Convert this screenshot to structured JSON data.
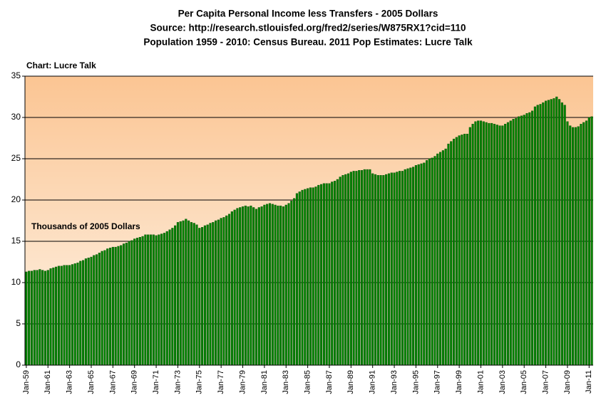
{
  "chart_data": {
    "type": "bar",
    "title_lines": [
      "Per Capita Personal Income less Transfers - 2005 Dollars",
      "Source: http://research.stlouisfed.org/fred2/series/W875RX1?cid=110",
      "Population 1959 - 2010: Census Bureau.  2011 Pop Estimates: Lucre Talk"
    ],
    "credit": "Chart: Lucre Talk",
    "annotation": "Thousands of 2005 Dollars",
    "color": "#008000",
    "grid": true,
    "ylim": [
      0,
      35
    ],
    "yticks": [
      0,
      5,
      10,
      15,
      20,
      25,
      30,
      35
    ],
    "categories": [
      "Jan-59",
      null,
      null,
      null,
      null,
      null,
      null,
      null,
      "Jan-61",
      null,
      null,
      null,
      null,
      null,
      null,
      null,
      "Jan-63",
      null,
      null,
      null,
      null,
      null,
      null,
      null,
      "Jan-65",
      null,
      null,
      null,
      null,
      null,
      null,
      null,
      "Jan-67",
      null,
      null,
      null,
      null,
      null,
      null,
      null,
      "Jan-69",
      null,
      null,
      null,
      null,
      null,
      null,
      null,
      "Jan-71",
      null,
      null,
      null,
      null,
      null,
      null,
      null,
      "Jan-73",
      null,
      null,
      null,
      null,
      null,
      null,
      null,
      "Jan-75",
      null,
      null,
      null,
      null,
      null,
      null,
      null,
      "Jan-77",
      null,
      null,
      null,
      null,
      null,
      null,
      null,
      "Jan-79",
      null,
      null,
      null,
      null,
      null,
      null,
      null,
      "Jan-81",
      null,
      null,
      null,
      null,
      null,
      null,
      null,
      "Jan-83",
      null,
      null,
      null,
      null,
      null,
      null,
      null,
      "Jan-85",
      null,
      null,
      null,
      null,
      null,
      null,
      null,
      "Jan-87",
      null,
      null,
      null,
      null,
      null,
      null,
      null,
      "Jan-89",
      null,
      null,
      null,
      null,
      null,
      null,
      null,
      "Jan-91",
      null,
      null,
      null,
      null,
      null,
      null,
      null,
      "Jan-93",
      null,
      null,
      null,
      null,
      null,
      null,
      null,
      "Jan-95",
      null,
      null,
      null,
      null,
      null,
      null,
      null,
      "Jan-97",
      null,
      null,
      null,
      null,
      null,
      null,
      null,
      "Jan-99",
      null,
      null,
      null,
      null,
      null,
      null,
      null,
      "Jan-01",
      null,
      null,
      null,
      null,
      null,
      null,
      null,
      "Jan-03",
      null,
      null,
      null,
      null,
      null,
      null,
      null,
      "Jan-05",
      null,
      null,
      null,
      null,
      null,
      null,
      null,
      "Jan-07",
      null,
      null,
      null,
      null,
      null,
      null,
      null,
      "Jan-09",
      null,
      null,
      null,
      null,
      null,
      null,
      null,
      "Jan-11",
      null
    ],
    "values": [
      11.3,
      11.4,
      11.4,
      11.5,
      11.5,
      11.6,
      11.5,
      11.4,
      11.5,
      11.7,
      11.8,
      11.9,
      12.0,
      12.0,
      12.1,
      12.1,
      12.1,
      12.2,
      12.3,
      12.4,
      12.6,
      12.7,
      12.9,
      13.0,
      13.1,
      13.3,
      13.4,
      13.6,
      13.8,
      13.9,
      14.1,
      14.2,
      14.3,
      14.3,
      14.4,
      14.5,
      14.7,
      14.8,
      15.0,
      15.1,
      15.3,
      15.4,
      15.5,
      15.6,
      15.8,
      15.8,
      15.8,
      15.8,
      15.7,
      15.8,
      15.9,
      16.0,
      16.2,
      16.4,
      16.6,
      16.9,
      17.3,
      17.4,
      17.5,
      17.7,
      17.5,
      17.3,
      17.2,
      17.0,
      16.6,
      16.7,
      16.9,
      17.0,
      17.2,
      17.3,
      17.5,
      17.6,
      17.8,
      17.9,
      18.1,
      18.3,
      18.6,
      18.8,
      19.0,
      19.1,
      19.2,
      19.3,
      19.2,
      19.3,
      19.1,
      18.9,
      19.1,
      19.2,
      19.4,
      19.5,
      19.6,
      19.5,
      19.4,
      19.3,
      19.3,
      19.2,
      19.4,
      19.6,
      19.9,
      20.2,
      20.8,
      21.0,
      21.2,
      21.3,
      21.4,
      21.5,
      21.5,
      21.6,
      21.8,
      21.9,
      22.0,
      22.0,
      22.0,
      22.2,
      22.3,
      22.5,
      22.8,
      23.0,
      23.1,
      23.2,
      23.4,
      23.5,
      23.5,
      23.6,
      23.6,
      23.7,
      23.7,
      23.7,
      23.2,
      23.1,
      23.0,
      23.0,
      23.0,
      23.1,
      23.2,
      23.3,
      23.3,
      23.4,
      23.5,
      23.5,
      23.7,
      23.8,
      23.9,
      24.0,
      24.2,
      24.3,
      24.4,
      24.5,
      24.8,
      25.0,
      25.1,
      25.3,
      25.6,
      25.8,
      26.0,
      26.2,
      26.8,
      27.1,
      27.4,
      27.6,
      27.8,
      27.9,
      28.0,
      28.0,
      28.8,
      29.2,
      29.5,
      29.6,
      29.6,
      29.5,
      29.4,
      29.3,
      29.3,
      29.2,
      29.1,
      29.0,
      29.0,
      29.2,
      29.4,
      29.6,
      29.8,
      29.9,
      30.1,
      30.2,
      30.3,
      30.5,
      30.6,
      30.8,
      31.3,
      31.5,
      31.6,
      31.8,
      32.0,
      32.1,
      32.2,
      32.3,
      32.5,
      32.2,
      31.8,
      31.5,
      29.5,
      29.0,
      28.8,
      28.8,
      28.9,
      29.2,
      29.4,
      29.6,
      30.0,
      30.1
    ]
  }
}
